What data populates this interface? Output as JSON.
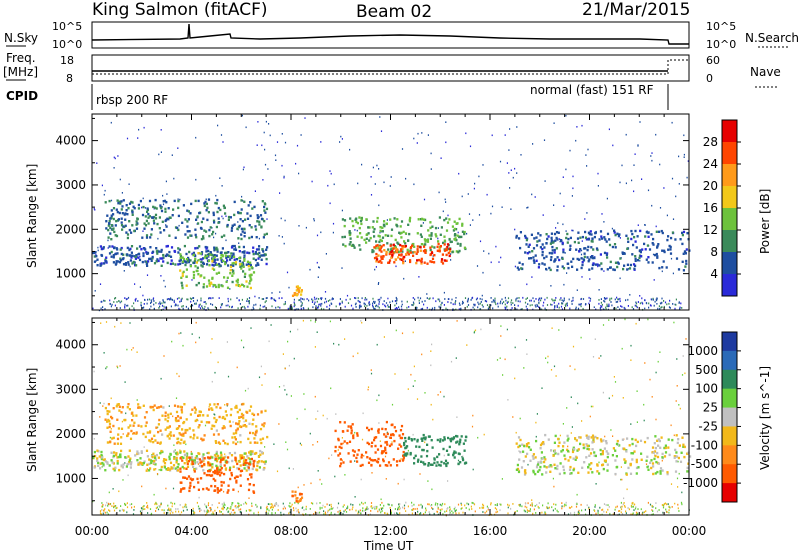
{
  "header": {
    "station": "King Salmon (fitACF)",
    "beam": "Beam 02",
    "date": "21/Mar/2015"
  },
  "top_panels": {
    "nsky_label": "N.Sky",
    "nsky_ticks": [
      "10^5",
      "10^0"
    ],
    "nsearch_label": "N.Search",
    "nsearch_ticks": [
      "10^5",
      "10^0"
    ],
    "freq_label": "Freq.",
    "freq_unit": "[MHz]",
    "freq_ticks": [
      "18",
      "8"
    ],
    "nave_label": "Nave",
    "nave_ticks": [
      "60",
      "0"
    ],
    "cpid_label": "CPID",
    "cpid_left": "rbsp 200 RF",
    "cpid_right": "normal (fast) 151 RF"
  },
  "power_panel": {
    "ylabel": "Slant Range [km]",
    "cbar_label": "Power [dB]",
    "cbar_ticks": [
      "28",
      "24",
      "20",
      "16",
      "12",
      "8",
      "4"
    ],
    "cbar_colors": [
      "#e60000",
      "#ff4500",
      "#ff9a1a",
      "#f2c81a",
      "#6dc23c",
      "#3a8a5a",
      "#1e4ea0",
      "#2a2ad8"
    ]
  },
  "velocity_panel": {
    "ylabel": "Slant Range [km]",
    "cbar_label": "Velocity [m s^-1]",
    "cbar_ticks": [
      "1000",
      "500",
      "100",
      "25",
      "-25",
      "-100",
      "-500",
      "-1000"
    ],
    "cbar_colors": [
      "#1e3aa0",
      "#2a6ab8",
      "#2e8a5a",
      "#6ad03c",
      "#c0c0c0",
      "#f2b81a",
      "#ff8a1a",
      "#ff5a00",
      "#e60000"
    ]
  },
  "xaxis": {
    "label": "Time UT",
    "ticks": [
      "00:00",
      "04:00",
      "08:00",
      "12:00",
      "16:00",
      "20:00",
      "00:00"
    ]
  },
  "chart_data": [
    {
      "type": "heatmap",
      "title": "Power",
      "xlabel": "Time UT",
      "ylabel": "Slant Range [km]",
      "ylim": [
        180,
        4600
      ],
      "xlim_hours": [
        0,
        24
      ],
      "yticks": [
        1000,
        2000,
        3000,
        4000
      ],
      "cbar_label": "Power [dB]",
      "features": [
        {
          "t_start": 0.0,
          "t_end": 7.0,
          "range_start": 1200,
          "range_end": 1650,
          "power_db": 6
        },
        {
          "t_start": 3.5,
          "t_end": 6.5,
          "range_start": 700,
          "range_end": 1500,
          "power_db": 14
        },
        {
          "t_start": 0.5,
          "t_end": 7.0,
          "range_start": 1800,
          "range_end": 2700,
          "power_db": 8
        },
        {
          "t_start": 8.0,
          "t_end": 8.4,
          "range_start": 500,
          "range_end": 750,
          "power_db": 20
        },
        {
          "t_start": 10.0,
          "t_end": 15.0,
          "range_start": 1500,
          "range_end": 2300,
          "power_db": 12
        },
        {
          "t_start": 11.3,
          "t_end": 14.4,
          "range_start": 1250,
          "range_end": 1700,
          "power_db": 26
        },
        {
          "t_start": 17.0,
          "t_end": 24.0,
          "range_start": 1100,
          "range_end": 2000,
          "power_db": 6
        }
      ]
    },
    {
      "type": "heatmap",
      "title": "Velocity",
      "xlabel": "Time UT",
      "ylabel": "Slant Range [km]",
      "ylim": [
        180,
        4600
      ],
      "xlim_hours": [
        0,
        24
      ],
      "yticks": [
        1000,
        2000,
        3000,
        4000
      ],
      "cbar_label": "Velocity [m s^-1]",
      "features": [
        {
          "t_start": 0.0,
          "t_end": 7.0,
          "range_start": 1200,
          "range_end": 1650,
          "velocity": 0
        },
        {
          "t_start": 3.5,
          "t_end": 6.5,
          "range_start": 700,
          "range_end": 1500,
          "velocity": -400
        },
        {
          "t_start": 0.5,
          "t_end": 7.0,
          "range_start": 1800,
          "range_end": 2700,
          "velocity": -50
        },
        {
          "t_start": 8.0,
          "t_end": 8.4,
          "range_start": 500,
          "range_end": 750,
          "velocity": -300
        },
        {
          "t_start": 9.7,
          "t_end": 12.5,
          "range_start": 1300,
          "range_end": 2300,
          "velocity": -700
        },
        {
          "t_start": 12.5,
          "t_end": 15.0,
          "range_start": 1300,
          "range_end": 2000,
          "velocity": 120
        },
        {
          "t_start": 17.0,
          "t_end": 24.0,
          "range_start": 1100,
          "range_end": 2000,
          "velocity": 0
        }
      ]
    }
  ]
}
